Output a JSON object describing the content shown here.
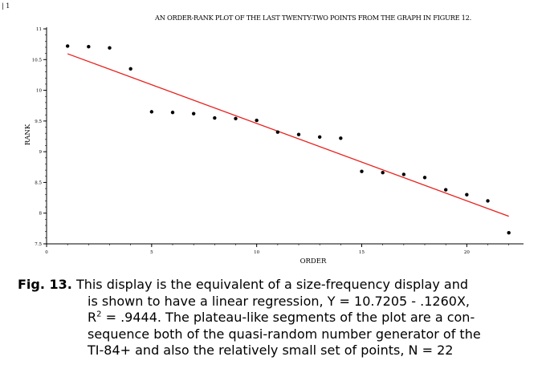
{
  "corner_mark": "| 1",
  "chart_data": {
    "type": "scatter",
    "title": "AN ORDER-RANK PLOT OF THE LAST TWENTY-TWO POINTS FROM THE GRAPH IN FIGURE 12.",
    "xlabel": "ORDER",
    "ylabel": "RANK",
    "xlim": [
      0,
      22.7
    ],
    "ylim": [
      7.5,
      11
    ],
    "x_ticks": [
      0,
      5,
      10,
      15,
      20
    ],
    "y_ticks": [
      7.5,
      8,
      8.5,
      9,
      9.5,
      10,
      10.5,
      11
    ],
    "x_tick_labels": [
      "0",
      "5",
      "10",
      "15",
      "20"
    ],
    "y_tick_labels": [
      "7.5",
      "8",
      "8.5",
      "9",
      "9.5",
      "10",
      "10.5",
      "11"
    ],
    "points": {
      "x": [
        1,
        2,
        3,
        4,
        5,
        6,
        7,
        8,
        9,
        10,
        11,
        12,
        13,
        14,
        15,
        16,
        17,
        18,
        19,
        20,
        21,
        22
      ],
      "y": [
        10.72,
        10.71,
        10.69,
        10.35,
        9.65,
        9.64,
        9.62,
        9.55,
        9.54,
        9.51,
        9.32,
        9.28,
        9.24,
        9.22,
        8.68,
        8.66,
        8.63,
        8.58,
        8.38,
        8.3,
        8.2,
        7.68
      ]
    },
    "regression": {
      "intercept": 10.7205,
      "slope": -0.126,
      "x_range": [
        1,
        22
      ],
      "color": "#e8201c"
    },
    "grid": false,
    "legend": "none"
  },
  "caption": {
    "label": "Fig. 13.",
    "line1": " This display is the equivalent of a size-frequency display and",
    "line2": "is shown to have a linear regression, Y = 10.7205 - .1260X,",
    "line3_a": "R",
    "line3_sup": "2",
    "line3_b": " = .9444. The plateau-like segments of the plot are a con-",
    "line4": "sequence both of the quasi-random number generator of the",
    "line5": "TI-84+ and also the relatively small set of points, N = 22"
  }
}
